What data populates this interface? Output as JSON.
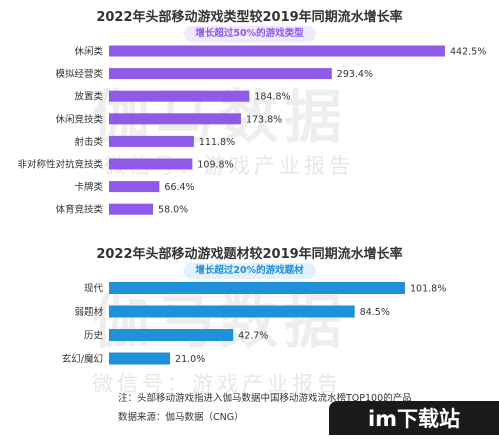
{
  "charts": {
    "top": {
      "title": "2022年头部移动游戏类型较2019年同期流水增长率",
      "pill": "增长超过50%的游戏类型",
      "color": "#8f5ae8",
      "pill_bg": "#f1e9ff",
      "pill_fg": "#8f5ae8"
    },
    "bottom": {
      "title": "2022年头部移动游戏题材较2019年同期流水增长率",
      "pill": "增长超过20%的游戏题材",
      "color": "#1e90dc",
      "pill_bg": "#e2f1fb",
      "pill_fg": "#1e90dc"
    }
  },
  "chart_data": [
    {
      "type": "bar",
      "orientation": "horizontal",
      "title": "2022年头部移动游戏类型较2019年同期流水增长率",
      "subtitle": "增长超过50%的游戏类型",
      "categories": [
        "休闲类",
        "模拟经营类",
        "放置类",
        "休闲竞技类",
        "射击类",
        "非对称性对抗竞技类",
        "卡牌类",
        "体育竞技类"
      ],
      "values": [
        442.5,
        293.4,
        184.8,
        173.8,
        111.8,
        109.8,
        66.4,
        58.0
      ],
      "value_labels": [
        "442.5%",
        "293.4%",
        "184.8%",
        "173.8%",
        "111.8%",
        "109.8%",
        "66.4%",
        "58.0%"
      ],
      "unit": "%",
      "xlim": [
        0,
        442.5
      ]
    },
    {
      "type": "bar",
      "orientation": "horizontal",
      "title": "2022年头部移动游戏题材较2019年同期流水增长率",
      "subtitle": "增长超过20%的游戏题材",
      "categories": [
        "现代",
        "弱题材",
        "历史",
        "玄幻/魔幻"
      ],
      "values": [
        101.8,
        84.5,
        42.7,
        21.0
      ],
      "value_labels": [
        "101.8%",
        "84.5%",
        "42.7%",
        "21.0%"
      ],
      "unit": "%",
      "xlim": [
        0,
        101.8
      ]
    }
  ],
  "notes": {
    "note": "注：头部移动游戏指进入伽马数据中国移动游戏流水榜TOP100的产品",
    "source": "数据来源：伽马数据（CNG）"
  },
  "watermark": {
    "main": "伽马数据",
    "sub": "微信号：游戏产业报告",
    "badge": "im下载站"
  }
}
